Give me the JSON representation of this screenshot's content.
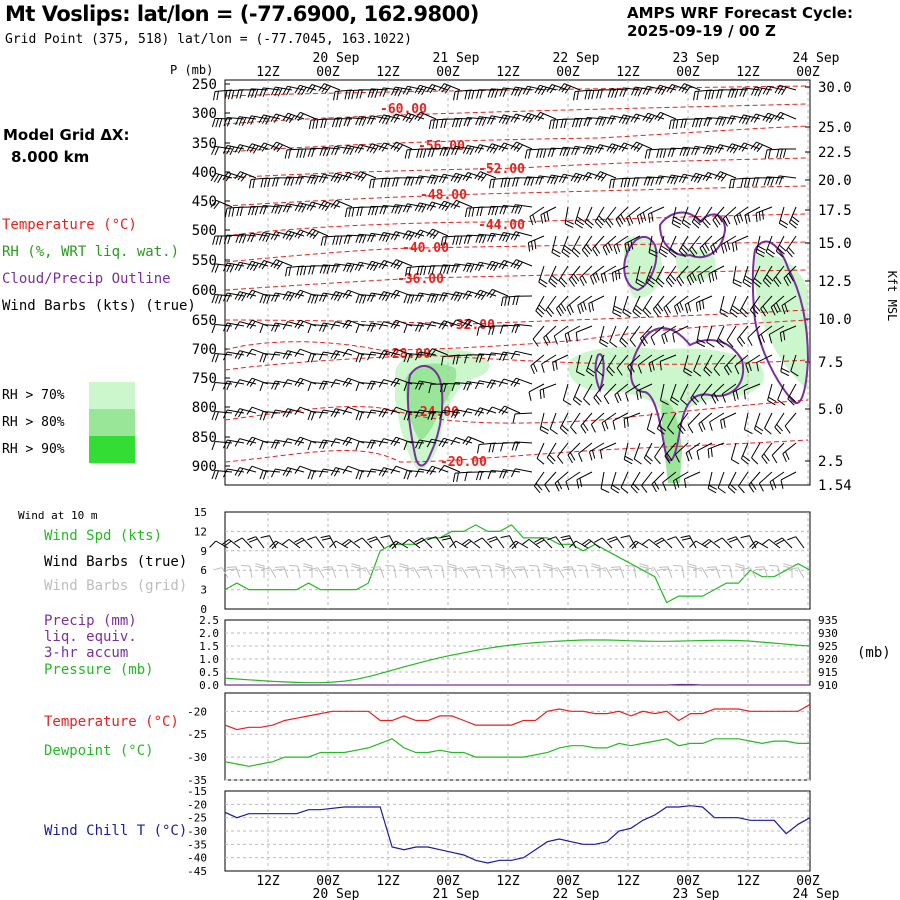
{
  "header": {
    "title": "Mt Voslips:  lat/lon = (-77.6900, 162.9800)",
    "subtitle": "Grid Point (375, 518) lat/lon = (-77.7045, 163.1022)",
    "cycle_label": "AMPS WRF Forecast Cycle:",
    "cycle_value": "2025-09-19 / 00  Z"
  },
  "left_legend": {
    "model_grid_label": "Model Grid ΔX:",
    "model_grid_value": "8.000 km",
    "temperature": "Temperature (°C)",
    "rh": "RH (%, WRT liq. wat.)",
    "cloud": "Cloud/Precip Outline",
    "wind_barbs": "Wind Barbs (kts) (true)",
    "rh70": "RH > 70%",
    "rh80": "RH > 80%",
    "rh90": "RH > 90%"
  },
  "colors": {
    "temperature": "#e8211e",
    "rh": "#2a9a1e",
    "cloud": "#7b2f9e",
    "wind": "#000000",
    "wind_grid": "#bdbdbd",
    "pressure": "#22bb22",
    "dewpoint": "#22bb22",
    "wind_chill": "#1a1aa6",
    "rh70": "#ccf7cc",
    "rh80": "#99e699",
    "rh90": "#33dd33"
  },
  "time_axis": {
    "top_hour_ticks": [
      "12Z",
      "00Z",
      "12Z",
      "00Z",
      "12Z",
      "00Z",
      "12Z",
      "00Z",
      "12Z",
      "00Z"
    ],
    "top_date_labels": [
      "20 Sep",
      "21 Sep",
      "22 Sep",
      "23 Sep",
      "24 Sep"
    ],
    "bottom_hour_ticks": [
      "12Z",
      "00Z",
      "12Z",
      "00Z",
      "12Z",
      "00Z",
      "12Z",
      "00Z",
      "12Z",
      "00Z"
    ],
    "bottom_date_labels": [
      "20 Sep",
      "21 Sep",
      "22 Sep",
      "23 Sep",
      "24 Sep"
    ]
  },
  "chart_data": [
    {
      "type": "heatmap",
      "panel": "cross-section",
      "yaxis_label": "P (mb)",
      "y_ticks": [
        "250",
        "300",
        "350",
        "400",
        "450",
        "500",
        "550",
        "600",
        "650",
        "700",
        "750",
        "800",
        "850",
        "900"
      ],
      "right_axis_label": "Kft MSL",
      "right_ticks": [
        "30.0",
        "25.0",
        "22.5",
        "20.0",
        "17.5",
        "15.0",
        "12.5",
        "10.0",
        "7.5",
        "5.0",
        "2.5",
        "1.54"
      ],
      "temperature_contour_labels": [
        "-60.00",
        "-56.00",
        "-52.00",
        "-48.00",
        "-44.00",
        "-40.00",
        "-36.00",
        "-32.00",
        "-28.00",
        "-24.00",
        "-20.00"
      ]
    },
    {
      "type": "line",
      "panel": "wind",
      "caption": "Wind at 10 m",
      "labels": {
        "speed": "Wind Spd (kts)",
        "barbs": "Wind Barbs (true)",
        "barbs_grid": "Wind Barbs (grid)"
      },
      "y_ticks": [
        "15",
        "12",
        "9",
        "6",
        "3",
        "0"
      ],
      "ylim": [
        0,
        15
      ],
      "series": [
        {
          "name": "Wind Spd (kts)",
          "values": [
            3,
            4,
            3,
            3,
            3,
            3,
            3,
            4,
            3,
            3,
            3,
            3,
            4,
            9,
            10,
            10,
            10,
            11,
            11,
            12,
            12,
            13,
            12,
            12,
            13,
            11,
            11,
            11,
            10,
            10,
            9,
            10,
            9,
            8,
            7,
            6,
            5,
            1,
            2,
            2,
            2,
            3,
            4,
            4,
            6,
            5,
            5,
            6,
            7,
            6
          ]
        }
      ]
    },
    {
      "type": "line",
      "panel": "precip-pressure",
      "labels": {
        "precip": "Precip (mm)",
        "precip2": "liq. equiv.",
        "precip3": "3-hr accum",
        "pressure": "Pressure (mb)"
      },
      "y_ticks": [
        "2.5",
        "2.0",
        "1.5",
        "1.0",
        "0.5",
        "0.0"
      ],
      "ylim": [
        0,
        2.5
      ],
      "right_ticks": [
        "935",
        "930",
        "925",
        "920",
        "915",
        "910"
      ],
      "right_unit": "(mb)",
      "right_lim": [
        910,
        935
      ],
      "series": [
        {
          "name": "Pressure (mb)",
          "values": [
            912.6,
            912.3,
            912.0,
            911.7,
            911.4,
            911.2,
            911.0,
            910.9,
            910.9,
            911.1,
            911.5,
            912.2,
            913.2,
            914.4,
            915.7,
            917.0,
            918.2,
            919.4,
            920.5,
            921.5,
            922.4,
            923.3,
            924.1,
            924.8,
            925.4,
            925.9,
            926.3,
            926.6,
            926.9,
            927.1,
            927.3,
            927.3,
            927.3,
            927.2,
            927.0,
            926.9,
            926.8,
            926.8,
            926.9,
            927.0,
            927.1,
            927.2,
            927.2,
            927.1,
            926.9,
            926.5,
            926.1,
            925.7,
            925.3,
            925.0
          ]
        },
        {
          "name": "Precip (mm)",
          "values": [
            0,
            0,
            0,
            0,
            0,
            0,
            0,
            0,
            0,
            0,
            0,
            0,
            0,
            0,
            0,
            0,
            0,
            0,
            0,
            0,
            0,
            0,
            0,
            0,
            0,
            0,
            0,
            0,
            0,
            0,
            0,
            0,
            0,
            0,
            0,
            0,
            0,
            0,
            0.02,
            0.02,
            0,
            0,
            0,
            0,
            0,
            0,
            0,
            0,
            0,
            0
          ]
        }
      ]
    },
    {
      "type": "line",
      "panel": "temperature-dewpoint",
      "labels": {
        "temperature": "Temperature (°C)",
        "dewpoint": "Dewpoint (°C)"
      },
      "y_ticks": [
        "-20",
        "-25",
        "-30",
        "-35"
      ],
      "ylim": [
        -35,
        -16
      ],
      "series": [
        {
          "name": "Temperature (°C)",
          "values": [
            -23,
            -24,
            -23.5,
            -23.5,
            -23,
            -22,
            -21.5,
            -21,
            -20.5,
            -20,
            -20,
            -20,
            -20,
            -22,
            -22,
            -21,
            -22,
            -22,
            -21,
            -21,
            -22,
            -23,
            -23,
            -23,
            -23,
            -22,
            -22,
            -20,
            -19.5,
            -20,
            -20,
            -20.5,
            -20.5,
            -20,
            -21,
            -20,
            -20.5,
            -20,
            -22,
            -20.5,
            -20.5,
            -19.5,
            -19.5,
            -19.5,
            -20,
            -20,
            -20,
            -20,
            -20,
            -18.5
          ]
        },
        {
          "name": "Dewpoint (°C)",
          "values": [
            -31,
            -31.5,
            -32,
            -31.5,
            -31,
            -30,
            -30,
            -30,
            -29,
            -29,
            -29,
            -28.5,
            -28,
            -27,
            -26,
            -28,
            -29,
            -29,
            -28.5,
            -29,
            -29,
            -30,
            -30,
            -30,
            -30,
            -30,
            -29.5,
            -29,
            -28,
            -27.5,
            -27.5,
            -28,
            -28,
            -27,
            -27.5,
            -27,
            -26.5,
            -26,
            -27.5,
            -27,
            -27,
            -26,
            -26,
            -26,
            -26.5,
            -27,
            -26.5,
            -26.5,
            -27,
            -27
          ]
        }
      ]
    },
    {
      "type": "line",
      "panel": "wind-chill",
      "labels": {
        "wind_chill": "Wind Chill T (°C)"
      },
      "y_ticks": [
        "-15",
        "-20",
        "-25",
        "-30",
        "-35",
        "-40",
        "-45"
      ],
      "ylim": [
        -45,
        -15
      ],
      "series": [
        {
          "name": "Wind Chill T (°C)",
          "values": [
            -23,
            -25,
            -23.5,
            -23.5,
            -23.5,
            -23.5,
            -23.5,
            -22,
            -22,
            -21.5,
            -21,
            -21,
            -21,
            -21,
            -36,
            -37,
            -36,
            -36,
            -37,
            -38,
            -39,
            -41,
            -42,
            -41,
            -41,
            -40,
            -37,
            -34,
            -33,
            -34,
            -35,
            -35,
            -34,
            -30,
            -29,
            -26,
            -24,
            -21,
            -21,
            -20.5,
            -21,
            -25,
            -25,
            -25,
            -26,
            -26,
            -26,
            -31,
            -27.5,
            -25
          ]
        }
      ]
    }
  ]
}
